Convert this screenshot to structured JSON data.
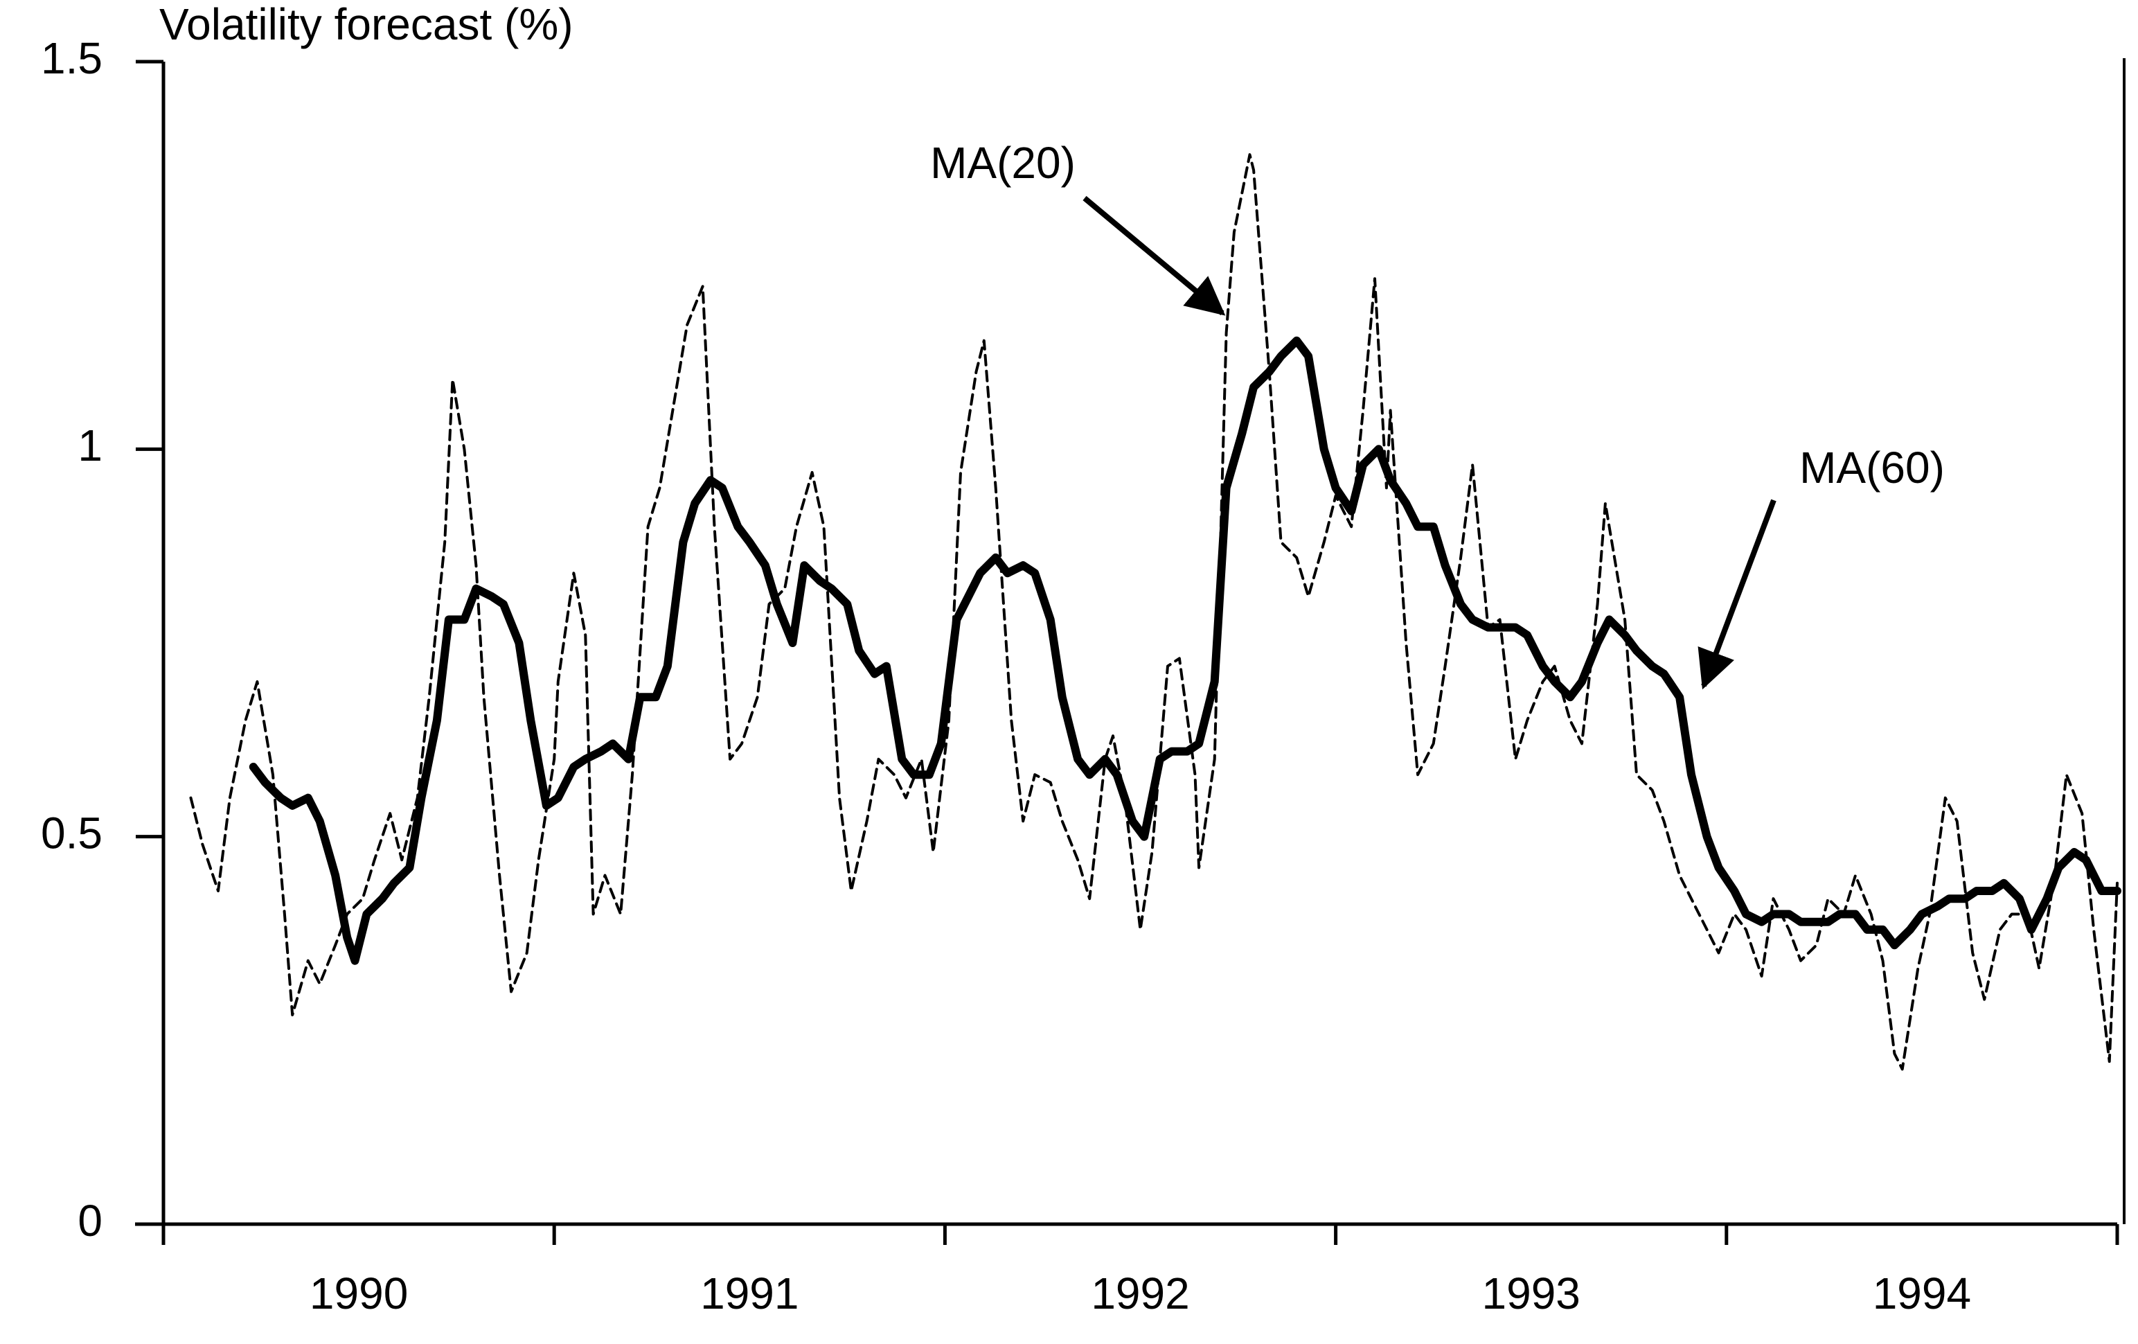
{
  "chart_data": {
    "type": "line",
    "title": "Volatility forecast (%)",
    "xlim": [
      1990,
      1995
    ],
    "xticks": [
      1990,
      1991,
      1992,
      1993,
      1994,
      1995
    ],
    "xlabels": [
      {
        "value": 1990.5,
        "label": "1990"
      },
      {
        "value": 1991.5,
        "label": "1991"
      },
      {
        "value": 1992.5,
        "label": "1992"
      },
      {
        "value": 1993.5,
        "label": "1993"
      },
      {
        "value": 1994.5,
        "label": "1994"
      }
    ],
    "ylim": [
      0,
      1.5
    ],
    "yticks": [
      0,
      0.5,
      1,
      1.5
    ],
    "grid": false,
    "annotations": [
      {
        "text": "MA(20)"
      },
      {
        "text": "MA(60)"
      }
    ],
    "series": [
      {
        "name": "MA(20)",
        "color": "#000000",
        "style": "dashed",
        "x": [
          1990.07,
          1990.1,
          1990.14,
          1990.17,
          1990.21,
          1990.24,
          1990.28,
          1990.31,
          1990.33,
          1990.37,
          1990.4,
          1990.44,
          1990.47,
          1990.51,
          1990.54,
          1990.58,
          1990.61,
          1990.65,
          1990.68,
          1990.72,
          1990.74,
          1990.77,
          1990.8,
          1990.82,
          1990.86,
          1990.89,
          1990.93,
          1990.96,
          1991.0,
          1991.01,
          1991.05,
          1991.08,
          1991.1,
          1991.13,
          1991.17,
          1991.2,
          1991.24,
          1991.27,
          1991.31,
          1991.34,
          1991.38,
          1991.41,
          1991.45,
          1991.48,
          1991.52,
          1991.55,
          1991.59,
          1991.62,
          1991.66,
          1991.69,
          1991.73,
          1991.76,
          1991.8,
          1991.83,
          1991.87,
          1991.9,
          1991.94,
          1991.97,
          1992.01,
          1992.04,
          1992.08,
          1992.1,
          1992.13,
          1992.17,
          1992.2,
          1992.23,
          1992.27,
          1992.3,
          1992.34,
          1992.37,
          1992.41,
          1992.43,
          1992.46,
          1992.5,
          1992.53,
          1992.57,
          1992.6,
          1992.64,
          1992.65,
          1992.69,
          1992.72,
          1992.74,
          1992.78,
          1992.79,
          1992.83,
          1992.86,
          1992.9,
          1992.93,
          1992.97,
          1993.0,
          1993.04,
          1993.07,
          1993.1,
          1993.13,
          1993.14,
          1993.18,
          1993.21,
          1993.25,
          1993.28,
          1993.32,
          1993.35,
          1993.39,
          1993.42,
          1993.46,
          1993.49,
          1993.53,
          1993.56,
          1993.6,
          1993.63,
          1993.67,
          1993.69,
          1993.74,
          1993.77,
          1993.81,
          1993.84,
          1993.88,
          1993.91,
          1993.95,
          1993.98,
          1994.02,
          1994.05,
          1994.09,
          1994.12,
          1994.16,
          1994.19,
          1994.23,
          1994.26,
          1994.3,
          1994.33,
          1994.37,
          1994.4,
          1994.43,
          1994.45,
          1994.49,
          1994.52,
          1994.56,
          1994.59,
          1994.63,
          1994.66,
          1994.7,
          1994.73,
          1994.77,
          1994.8,
          1994.84,
          1994.87,
          1994.91,
          1994.94,
          1994.98,
          1995.0
        ],
        "values": [
          0.55,
          0.49,
          0.43,
          0.55,
          0.65,
          0.7,
          0.58,
          0.4,
          0.27,
          0.34,
          0.31,
          0.36,
          0.4,
          0.42,
          0.47,
          0.53,
          0.47,
          0.55,
          0.68,
          0.88,
          1.09,
          1.0,
          0.85,
          0.68,
          0.45,
          0.3,
          0.35,
          0.47,
          0.6,
          0.7,
          0.84,
          0.76,
          0.4,
          0.45,
          0.4,
          0.58,
          0.9,
          0.95,
          1.07,
          1.16,
          1.21,
          0.9,
          0.6,
          0.62,
          0.68,
          0.8,
          0.82,
          0.9,
          0.97,
          0.9,
          0.55,
          0.43,
          0.52,
          0.6,
          0.58,
          0.55,
          0.6,
          0.48,
          0.65,
          0.97,
          1.1,
          1.14,
          0.95,
          0.65,
          0.52,
          0.58,
          0.57,
          0.52,
          0.47,
          0.42,
          0.6,
          0.63,
          0.55,
          0.38,
          0.48,
          0.72,
          0.73,
          0.58,
          0.46,
          0.6,
          1.15,
          1.28,
          1.38,
          1.36,
          1.1,
          0.88,
          0.86,
          0.81,
          0.88,
          0.94,
          0.9,
          1.05,
          1.22,
          0.95,
          1.05,
          0.75,
          0.58,
          0.62,
          0.72,
          0.86,
          0.98,
          0.77,
          0.78,
          0.6,
          0.65,
          0.7,
          0.72,
          0.65,
          0.62,
          0.8,
          0.93,
          0.78,
          0.58,
          0.56,
          0.52,
          0.45,
          0.42,
          0.38,
          0.35,
          0.4,
          0.38,
          0.32,
          0.42,
          0.38,
          0.34,
          0.36,
          0.42,
          0.4,
          0.45,
          0.4,
          0.34,
          0.22,
          0.2,
          0.33,
          0.4,
          0.55,
          0.52,
          0.35,
          0.29,
          0.38,
          0.4,
          0.4,
          0.33,
          0.45,
          0.58,
          0.53,
          0.38,
          0.21,
          0.44
        ]
      },
      {
        "name": "MA(60)",
        "color": "#000000",
        "style": "solid",
        "x": [
          1990.23,
          1990.26,
          1990.3,
          1990.33,
          1990.37,
          1990.4,
          1990.44,
          1990.47,
          1990.49,
          1990.52,
          1990.56,
          1990.59,
          1990.63,
          1990.66,
          1990.7,
          1990.73,
          1990.77,
          1990.8,
          1990.84,
          1990.87,
          1990.91,
          1990.94,
          1990.98,
          1991.01,
          1991.05,
          1991.08,
          1991.12,
          1991.15,
          1991.19,
          1991.22,
          1991.26,
          1991.29,
          1991.33,
          1991.36,
          1991.4,
          1991.43,
          1991.47,
          1991.5,
          1991.54,
          1991.57,
          1991.61,
          1991.64,
          1991.68,
          1991.71,
          1991.75,
          1991.78,
          1991.82,
          1991.85,
          1991.89,
          1991.92,
          1991.96,
          1991.99,
          1992.03,
          1992.06,
          1992.09,
          1992.13,
          1992.16,
          1992.2,
          1992.23,
          1992.27,
          1992.3,
          1992.34,
          1992.37,
          1992.41,
          1992.44,
          1992.48,
          1992.51,
          1992.55,
          1992.58,
          1992.62,
          1992.65,
          1992.69,
          1992.72,
          1992.76,
          1992.79,
          1992.83,
          1992.86,
          1992.9,
          1992.93,
          1992.97,
          1993.0,
          1993.04,
          1993.07,
          1993.11,
          1993.14,
          1993.18,
          1993.21,
          1993.25,
          1993.28,
          1993.32,
          1993.35,
          1993.39,
          1993.42,
          1993.46,
          1993.49,
          1993.53,
          1993.56,
          1993.6,
          1993.63,
          1993.67,
          1993.7,
          1993.74,
          1993.77,
          1993.81,
          1993.84,
          1993.88,
          1993.91,
          1993.95,
          1993.98,
          1994.02,
          1994.05,
          1994.09,
          1994.12,
          1994.16,
          1994.19,
          1994.23,
          1994.26,
          1994.29,
          1994.33,
          1994.36,
          1994.4,
          1994.43,
          1994.47,
          1994.5,
          1994.54,
          1994.57,
          1994.61,
          1994.64,
          1994.68,
          1994.71,
          1994.75,
          1994.78,
          1994.82,
          1994.85,
          1994.89,
          1994.92,
          1994.96,
          1995.0
        ],
        "values": [
          0.59,
          0.57,
          0.55,
          0.54,
          0.55,
          0.52,
          0.45,
          0.37,
          0.34,
          0.4,
          0.42,
          0.44,
          0.46,
          0.55,
          0.65,
          0.78,
          0.78,
          0.82,
          0.81,
          0.8,
          0.75,
          0.65,
          0.54,
          0.55,
          0.59,
          0.6,
          0.61,
          0.62,
          0.6,
          0.68,
          0.68,
          0.72,
          0.88,
          0.93,
          0.96,
          0.95,
          0.9,
          0.88,
          0.85,
          0.8,
          0.75,
          0.85,
          0.83,
          0.82,
          0.8,
          0.74,
          0.71,
          0.72,
          0.6,
          0.58,
          0.58,
          0.62,
          0.78,
          0.81,
          0.84,
          0.86,
          0.84,
          0.85,
          0.84,
          0.78,
          0.68,
          0.6,
          0.58,
          0.6,
          0.58,
          0.52,
          0.5,
          0.6,
          0.61,
          0.61,
          0.62,
          0.7,
          0.95,
          1.02,
          1.08,
          1.1,
          1.12,
          1.14,
          1.12,
          1.0,
          0.95,
          0.92,
          0.98,
          1.0,
          0.96,
          0.93,
          0.9,
          0.9,
          0.85,
          0.8,
          0.78,
          0.77,
          0.77,
          0.77,
          0.76,
          0.72,
          0.7,
          0.68,
          0.7,
          0.75,
          0.78,
          0.76,
          0.74,
          0.72,
          0.71,
          0.68,
          0.58,
          0.5,
          0.46,
          0.43,
          0.4,
          0.39,
          0.4,
          0.4,
          0.39,
          0.39,
          0.39,
          0.4,
          0.4,
          0.38,
          0.38,
          0.36,
          0.38,
          0.4,
          0.41,
          0.42,
          0.42,
          0.43,
          0.43,
          0.44,
          0.42,
          0.38,
          0.42,
          0.46,
          0.48,
          0.47,
          0.43,
          0.43
        ]
      }
    ]
  }
}
